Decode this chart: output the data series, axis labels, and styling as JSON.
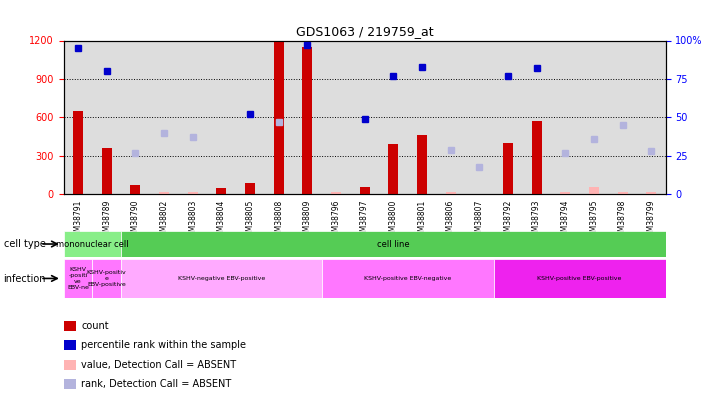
{
  "title": "GDS1063 / 219759_at",
  "samples": [
    "GSM38791",
    "GSM38789",
    "GSM38790",
    "GSM38802",
    "GSM38803",
    "GSM38804",
    "GSM38805",
    "GSM38808",
    "GSM38809",
    "GSM38796",
    "GSM38797",
    "GSM38800",
    "GSM38801",
    "GSM38806",
    "GSM38807",
    "GSM38792",
    "GSM38793",
    "GSM38794",
    "GSM38795",
    "GSM38798",
    "GSM38799"
  ],
  "count_values": [
    650,
    360,
    75,
    null,
    null,
    50,
    90,
    1185,
    1150,
    null,
    55,
    390,
    460,
    null,
    null,
    400,
    575,
    null,
    null,
    null,
    null
  ],
  "count_absent": [
    null,
    null,
    null,
    15,
    15,
    null,
    null,
    null,
    null,
    15,
    null,
    null,
    null,
    15,
    null,
    null,
    null,
    15,
    60,
    15,
    15
  ],
  "percentile_values": [
    95,
    80,
    null,
    null,
    null,
    null,
    52,
    null,
    97,
    null,
    49,
    77,
    83,
    null,
    null,
    77,
    82,
    null,
    null,
    null,
    null
  ],
  "percentile_absent": [
    null,
    null,
    27,
    40,
    37,
    null,
    null,
    47,
    null,
    null,
    null,
    null,
    null,
    29,
    18,
    null,
    null,
    27,
    36,
    45,
    28
  ],
  "ylim_left": [
    0,
    1200
  ],
  "ylim_right": [
    0,
    100
  ],
  "yticks_left": [
    0,
    300,
    600,
    900,
    1200
  ],
  "yticks_right": [
    0,
    25,
    50,
    75,
    100
  ],
  "bar_color": "#CC0000",
  "bar_absent_color": "#FFB3B3",
  "dot_color": "#0000CC",
  "dot_absent_color": "#B3B3DD",
  "legend_items": [
    {
      "label": "count",
      "color": "#CC0000"
    },
    {
      "label": "percentile rank within the sample",
      "color": "#0000CC"
    },
    {
      "label": "value, Detection Call = ABSENT",
      "color": "#FFB3B3"
    },
    {
      "label": "rank, Detection Call = ABSENT",
      "color": "#B3B3DD"
    }
  ],
  "cell_type_groups": [
    {
      "label": "mononuclear cell",
      "start": 0,
      "end": 2,
      "color": "#88EE88"
    },
    {
      "label": "cell line",
      "start": 2,
      "end": 21,
      "color": "#55CC55"
    }
  ],
  "infection_groups": [
    {
      "label": "KSHV\n-positi\nve\nEBV-ne",
      "start": 0,
      "end": 1,
      "color": "#FF77FF"
    },
    {
      "label": "KSHV-positiv\ne\nEBV-positive",
      "start": 1,
      "end": 2,
      "color": "#FF77FF"
    },
    {
      "label": "KSHV-negative EBV-positive",
      "start": 2,
      "end": 9,
      "color": "#FFAAFF"
    },
    {
      "label": "KSHV-positive EBV-negative",
      "start": 9,
      "end": 15,
      "color": "#FF77FF"
    },
    {
      "label": "KSHV-positive EBV-positive",
      "start": 15,
      "end": 21,
      "color": "#EE22EE"
    }
  ]
}
